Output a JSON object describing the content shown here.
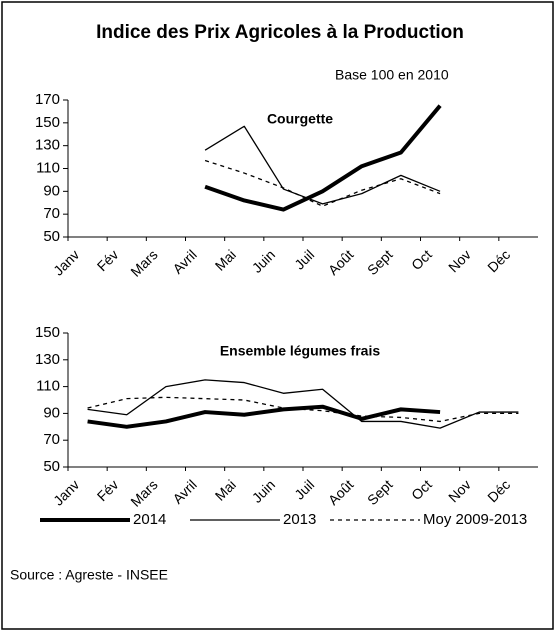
{
  "title": "Indice des Prix Agricoles à la Production",
  "subtitle": "Base 100 en 2010",
  "source": "Source : Agreste - INSEE",
  "chart_data": [
    {
      "type": "line",
      "title": "Courgette",
      "categories": [
        "Janv",
        "Fév",
        "Mars",
        "Avril",
        "Mai",
        "Juin",
        "Juil",
        "Août",
        "Sept",
        "Oct",
        "Nov",
        "Déc"
      ],
      "ylim": [
        50,
        170
      ],
      "yticks": [
        50,
        70,
        90,
        110,
        130,
        150,
        170
      ],
      "series": [
        {
          "color": "#000000",
          "line_width": 4,
          "dash": "none",
          "values": [
            null,
            null,
            null,
            94,
            82,
            74,
            90,
            112,
            124,
            165,
            null,
            null
          ]
        },
        {
          "color": "#000000",
          "line_width": 1.3,
          "dash": "none",
          "values": [
            null,
            null,
            null,
            126,
            147,
            92,
            79,
            88,
            104,
            90,
            null,
            null
          ]
        },
        {
          "color": "#000000",
          "line_width": 1.3,
          "dash": "4 4",
          "values": [
            null,
            null,
            null,
            117,
            106,
            93,
            77,
            91,
            101,
            88,
            null,
            null
          ]
        }
      ]
    },
    {
      "type": "line",
      "title": "Ensemble légumes frais",
      "categories": [
        "Janv",
        "Fév",
        "Mars",
        "Avril",
        "Mai",
        "Juin",
        "Juil",
        "Août",
        "Sept",
        "Oct",
        "Nov",
        "Déc"
      ],
      "ylim": [
        50,
        150
      ],
      "yticks": [
        50,
        70,
        90,
        110,
        130,
        150
      ],
      "series": [
        {
          "name": "2014",
          "color": "#000000",
          "line_width": 4,
          "dash": "none",
          "values": [
            84,
            80,
            84,
            91,
            89,
            93,
            95,
            86,
            93,
            91,
            null,
            null
          ]
        },
        {
          "name": "2013",
          "color": "#000000",
          "line_width": 1.3,
          "dash": "none",
          "values": [
            93,
            89,
            110,
            115,
            113,
            105,
            108,
            84,
            84,
            79,
            91,
            91
          ]
        },
        {
          "name": "Moy 2009-2013",
          "color": "#000000",
          "line_width": 1.3,
          "dash": "4 4",
          "values": [
            94,
            101,
            102,
            101,
            100,
            94,
            92,
            88,
            87,
            84,
            90,
            90
          ]
        }
      ]
    }
  ]
}
